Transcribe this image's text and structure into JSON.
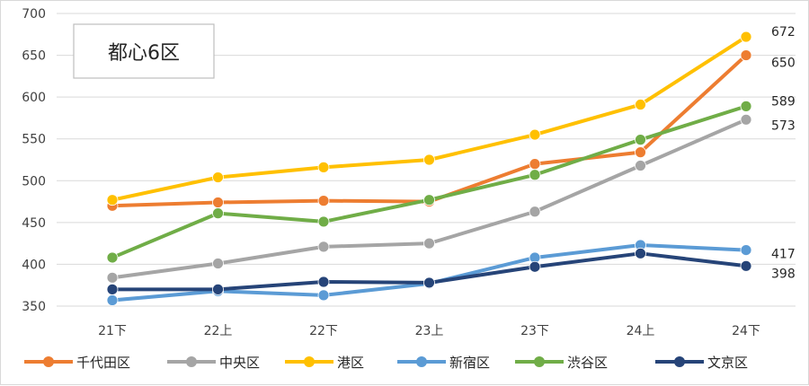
{
  "chart_data": {
    "type": "line",
    "title": "都心6区",
    "categories": [
      "21下",
      "22上",
      "22下",
      "23上",
      "23下",
      "24上",
      "24下"
    ],
    "ylim": [
      350,
      700
    ],
    "yticks": [
      350,
      400,
      450,
      500,
      550,
      600,
      650,
      700
    ],
    "grid": true,
    "legend_position": "bottom",
    "series": [
      {
        "name": "千代田区",
        "color": "#ed7d31",
        "values": [
          470,
          474,
          476,
          475,
          520,
          534,
          650
        ],
        "end_label": "650"
      },
      {
        "name": "中央区",
        "color": "#a5a5a5",
        "values": [
          384,
          401,
          421,
          425,
          463,
          518,
          573
        ],
        "end_label": "573"
      },
      {
        "name": "港区",
        "color": "#ffc000",
        "values": [
          477,
          504,
          516,
          525,
          555,
          591,
          672
        ],
        "end_label": "672"
      },
      {
        "name": "新宿区",
        "color": "#5b9bd5",
        "values": [
          357,
          368,
          363,
          377,
          408,
          423,
          417
        ],
        "end_label": "417"
      },
      {
        "name": "渋谷区",
        "color": "#70ad47",
        "values": [
          408,
          461,
          451,
          477,
          507,
          549,
          589
        ],
        "end_label": "589"
      },
      {
        "name": "文京区",
        "color": "#264478",
        "values": [
          370,
          370,
          379,
          378,
          397,
          413,
          398
        ],
        "end_label": "398"
      }
    ]
  }
}
